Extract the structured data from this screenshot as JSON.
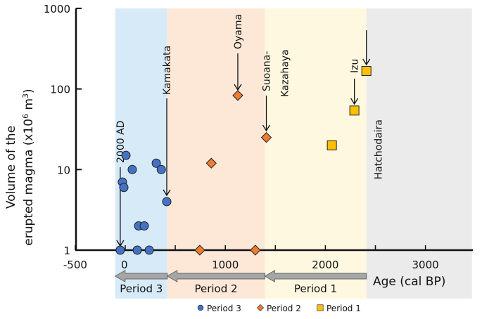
{
  "chart_data": {
    "type": "scatter",
    "xlabel": "Age (cal BP)",
    "ylabel_line1": "Volume of the",
    "ylabel_line2": "erupted magma (x10",
    "ylabel_sup": "6",
    "ylabel_unit": " m",
    "ylabel_unit_sup": "3",
    "ylabel_close": ")",
    "xlim": [
      -500,
      3500
    ],
    "ylim": [
      1,
      1000
    ],
    "yscale": "log",
    "xticks": [
      -500,
      0,
      1000,
      2000,
      3000
    ],
    "xtick_marks": [
      -500,
      0,
      500,
      1000,
      1500,
      2000,
      2500,
      3000
    ],
    "yticks": [
      1,
      10,
      100,
      1000
    ],
    "bands": [
      {
        "name": "Period 3",
        "from": -100,
        "to": 420,
        "color": "#d6eaf8"
      },
      {
        "name": "Period 2",
        "from": 420,
        "to": 1395,
        "color": "#fde8d8"
      },
      {
        "name": "Period 1",
        "from": 1395,
        "to": 2410,
        "color": "#fef8e1"
      },
      {
        "name": "",
        "from": 2410,
        "to": 3465,
        "color": "#ebebeb"
      }
    ],
    "series": [
      {
        "name": "Period 3",
        "marker": "circle",
        "color": "#4472c4",
        "points": [
          [
            -50,
            1
          ],
          [
            120,
            1
          ],
          [
            240,
            1
          ],
          [
            7,
            15
          ],
          [
            70,
            10
          ],
          [
            -28,
            7
          ],
          [
            -14,
            6
          ],
          [
            134,
            2
          ],
          [
            190,
            2
          ],
          [
            310,
            12
          ],
          [
            360,
            10
          ],
          [
            415,
            4
          ]
        ]
      },
      {
        "name": "Period 2",
        "marker": "diamond",
        "color": "#ed7d31",
        "points": [
          [
            745,
            1
          ],
          [
            1300,
            1
          ],
          [
            860,
            12
          ],
          [
            1125,
            83
          ],
          [
            1410,
            25
          ]
        ]
      },
      {
        "name": "Period 1",
        "marker": "square",
        "color": "#ffc000",
        "points": [
          [
            2065,
            20
          ],
          [
            2290,
            54
          ],
          [
            2410,
            167
          ]
        ]
      }
    ],
    "annotations": [
      {
        "label": "2000 AD",
        "x": -50,
        "y": 1
      },
      {
        "label": "Kamakata",
        "x": 415,
        "y": 4
      },
      {
        "label": "Oyama",
        "x": 1125,
        "y": 83
      },
      {
        "label": "Suoana-",
        "label2": "Kazahaya",
        "x": 1410,
        "y": 25
      },
      {
        "label": "Izu",
        "x": 2290,
        "y": 54
      },
      {
        "label": "Hatchodaira",
        "x": 2410,
        "y": 167
      }
    ],
    "period_arrows": [
      {
        "label": "Period 3",
        "from": 420,
        "to": -100
      },
      {
        "label": "Period 2",
        "from": 1395,
        "to": 420
      },
      {
        "label": "Period 1",
        "from": 2410,
        "to": 1395
      }
    ],
    "legend": {
      "position": "bottom",
      "entries": [
        "Period 3",
        "Period 2",
        "Period 1"
      ]
    }
  }
}
